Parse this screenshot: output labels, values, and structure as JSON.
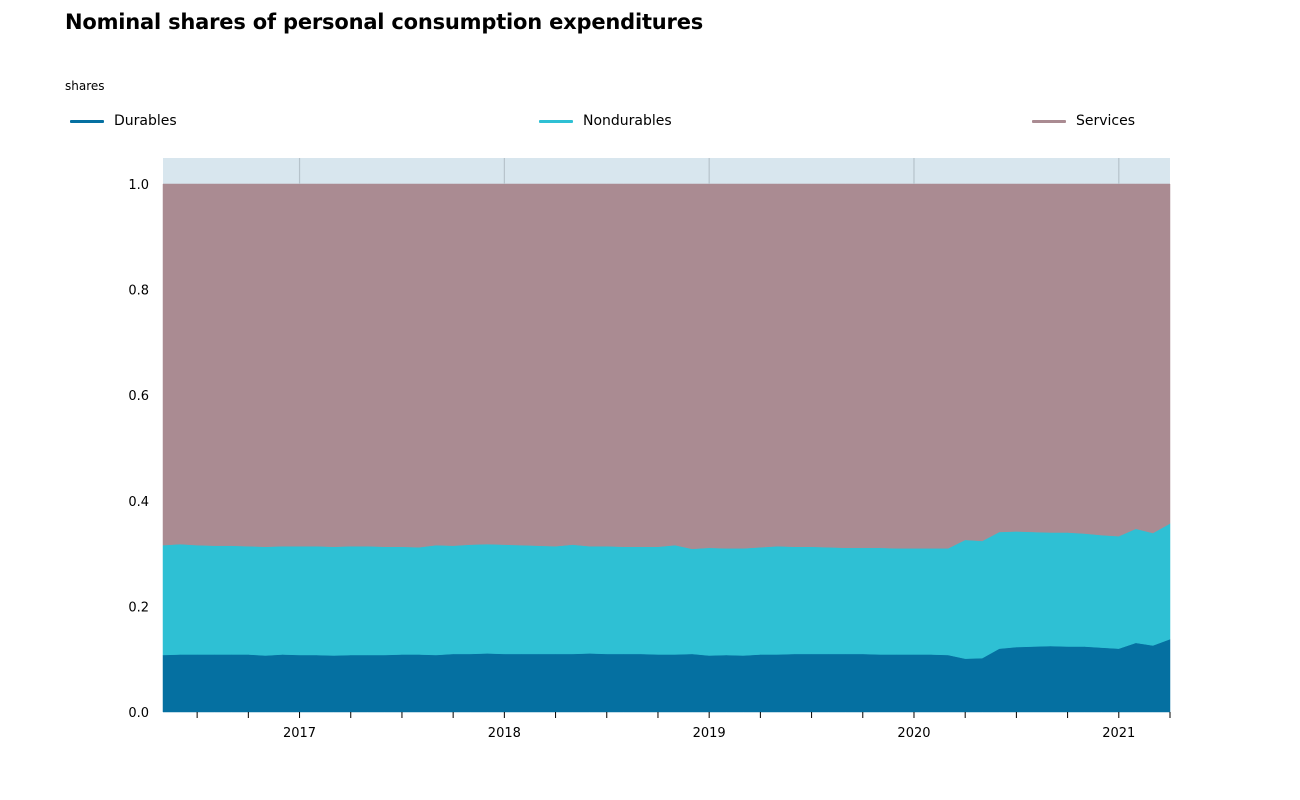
{
  "chart_data": {
    "type": "area",
    "stacked": true,
    "title": "Nominal shares of personal consumption expenditures",
    "ylabel": "shares",
    "xlabel": "",
    "ylim": [
      0,
      1.0
    ],
    "yticks": [
      "0.0",
      "0.2",
      "0.4",
      "0.6",
      "0.8",
      "1.0"
    ],
    "xticks": [
      "2017",
      "2018",
      "2019",
      "2020",
      "2021"
    ],
    "legend_position": "top",
    "x": [
      "2016-05",
      "2016-06",
      "2016-07",
      "2016-08",
      "2016-09",
      "2016-10",
      "2016-11",
      "2016-12",
      "2017-01",
      "2017-02",
      "2017-03",
      "2017-04",
      "2017-05",
      "2017-06",
      "2017-07",
      "2017-08",
      "2017-09",
      "2017-10",
      "2017-11",
      "2017-12",
      "2018-01",
      "2018-02",
      "2018-03",
      "2018-04",
      "2018-05",
      "2018-06",
      "2018-07",
      "2018-08",
      "2018-09",
      "2018-10",
      "2018-11",
      "2018-12",
      "2019-01",
      "2019-02",
      "2019-03",
      "2019-04",
      "2019-05",
      "2019-06",
      "2019-07",
      "2019-08",
      "2019-09",
      "2019-10",
      "2019-11",
      "2019-12",
      "2020-01",
      "2020-02",
      "2020-03",
      "2020-04",
      "2020-05",
      "2020-06",
      "2020-07",
      "2020-08",
      "2020-09",
      "2020-10",
      "2020-11",
      "2020-12",
      "2021-01",
      "2021-02",
      "2021-03",
      "2021-04"
    ],
    "series": [
      {
        "name": "Durables",
        "color": "#0570a1",
        "values": [
          0.108,
          0.109,
          0.109,
          0.109,
          0.109,
          0.109,
          0.107,
          0.109,
          0.108,
          0.108,
          0.107,
          0.108,
          0.108,
          0.108,
          0.109,
          0.109,
          0.108,
          0.11,
          0.11,
          0.111,
          0.11,
          0.11,
          0.11,
          0.11,
          0.11,
          0.111,
          0.11,
          0.11,
          0.11,
          0.109,
          0.109,
          0.11,
          0.107,
          0.108,
          0.107,
          0.109,
          0.109,
          0.11,
          0.11,
          0.11,
          0.11,
          0.11,
          0.109,
          0.109,
          0.109,
          0.109,
          0.108,
          0.101,
          0.102,
          0.12,
          0.123,
          0.124,
          0.125,
          0.124,
          0.124,
          0.122,
          0.12,
          0.131,
          0.126,
          0.138
        ]
      },
      {
        "name": "Nondurables",
        "color": "#2ec0d4",
        "values": [
          0.208,
          0.209,
          0.207,
          0.206,
          0.206,
          0.205,
          0.206,
          0.205,
          0.206,
          0.206,
          0.206,
          0.206,
          0.206,
          0.205,
          0.204,
          0.203,
          0.208,
          0.205,
          0.207,
          0.207,
          0.207,
          0.206,
          0.205,
          0.204,
          0.207,
          0.203,
          0.204,
          0.203,
          0.203,
          0.204,
          0.207,
          0.199,
          0.204,
          0.202,
          0.203,
          0.203,
          0.205,
          0.203,
          0.203,
          0.202,
          0.201,
          0.201,
          0.202,
          0.201,
          0.201,
          0.201,
          0.202,
          0.225,
          0.222,
          0.221,
          0.219,
          0.217,
          0.215,
          0.216,
          0.214,
          0.213,
          0.213,
          0.216,
          0.213,
          0.219
        ]
      },
      {
        "name": "Services",
        "color": "#aa8b92",
        "values": [
          0.684,
          0.682,
          0.684,
          0.685,
          0.685,
          0.686,
          0.687,
          0.686,
          0.686,
          0.686,
          0.687,
          0.686,
          0.686,
          0.687,
          0.687,
          0.688,
          0.684,
          0.685,
          0.683,
          0.682,
          0.683,
          0.684,
          0.685,
          0.686,
          0.683,
          0.686,
          0.686,
          0.687,
          0.687,
          0.687,
          0.684,
          0.691,
          0.689,
          0.69,
          0.69,
          0.688,
          0.686,
          0.687,
          0.687,
          0.688,
          0.689,
          0.689,
          0.689,
          0.69,
          0.69,
          0.69,
          0.69,
          0.674,
          0.676,
          0.659,
          0.658,
          0.659,
          0.66,
          0.66,
          0.662,
          0.665,
          0.667,
          0.653,
          0.661,
          0.643
        ]
      }
    ]
  }
}
